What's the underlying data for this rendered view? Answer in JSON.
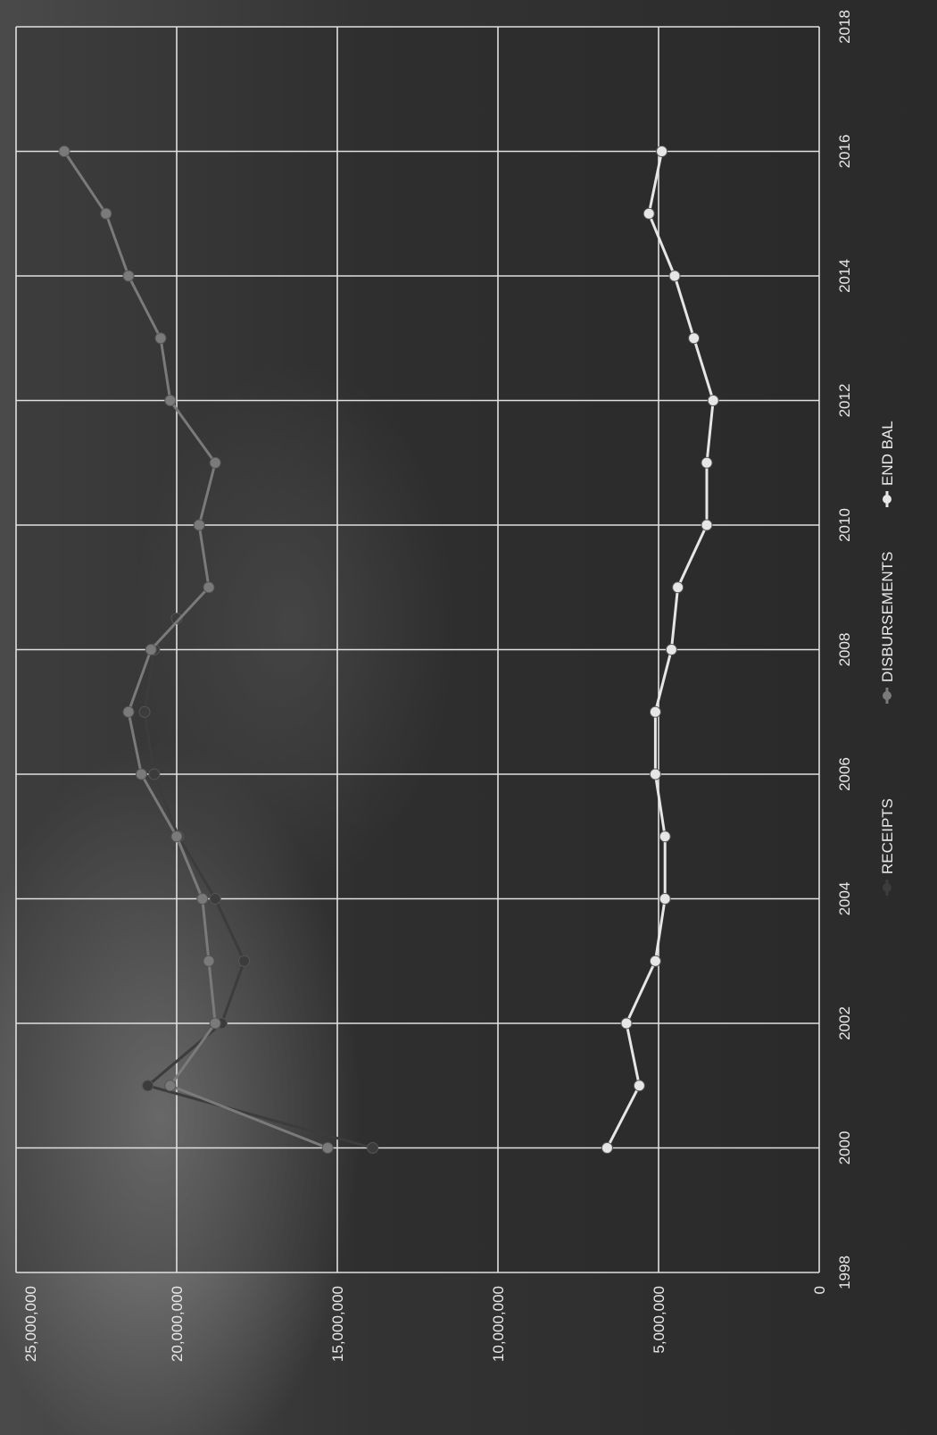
{
  "chart_data": {
    "type": "line",
    "orientation_note": "rotated 90deg counter-clockwise in the image",
    "title": "",
    "xlabel": "",
    "ylabel": "",
    "xlim": [
      1998,
      2018
    ],
    "ylim": [
      0,
      25000000
    ],
    "x_ticks": [
      "1998",
      "2000",
      "2002",
      "2004",
      "2006",
      "2008",
      "2010",
      "2012",
      "2014",
      "2016",
      "2018"
    ],
    "y_ticks": [
      "0",
      "5,000,000",
      "10,000,000",
      "15,000,000",
      "20,000,000",
      "25,000,000"
    ],
    "grid": true,
    "legend_position": "bottom",
    "legend": [
      "RECEIPTS",
      "DISBURSEMENTS",
      "END BAL"
    ],
    "series": [
      {
        "name": "RECEIPTS",
        "color": "#3c3c3c",
        "x": [
          2000,
          2001,
          2002,
          2003,
          2004,
          2005,
          2006,
          2007,
          2008,
          2008.5
        ],
        "y": [
          13900000,
          20900000,
          18600000,
          17900000,
          18800000,
          19950000,
          20700000,
          21000000,
          20700000,
          20000000
        ]
      },
      {
        "name": "DISBURSEMENTS",
        "color": "#7a7a7a",
        "x": [
          2000,
          2001,
          2002,
          2003,
          2004,
          2005,
          2006,
          2007,
          2008,
          2009,
          2010,
          2011,
          2012,
          2013,
          2014,
          2015,
          2016
        ],
        "y": [
          15300000,
          20200000,
          18800000,
          19000000,
          19200000,
          20000000,
          21100000,
          21500000,
          20800000,
          19000000,
          19300000,
          18800000,
          20200000,
          20500000,
          21500000,
          22200000,
          23500000
        ]
      },
      {
        "name": "END BAL",
        "color": "#e6e6e6",
        "x": [
          2000,
          2001,
          2002,
          2003,
          2004,
          2005,
          2006,
          2007,
          2008,
          2009,
          2010,
          2011,
          2012,
          2013,
          2014,
          2015,
          2016
        ],
        "y": [
          6600000,
          5600000,
          6000000,
          5100000,
          4800000,
          4800000,
          5100000,
          5100000,
          4600000,
          4400000,
          3500000,
          3500000,
          3300000,
          3900000,
          4500000,
          5300000,
          4900000
        ]
      }
    ]
  }
}
